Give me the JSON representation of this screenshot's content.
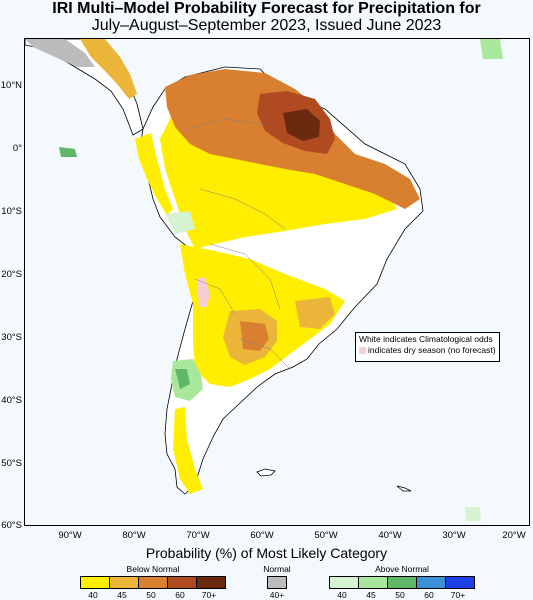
{
  "title_line1": "IRI Multi–Model Probability Forecast for Precipitation for",
  "title_line2": "July–August–September 2023, Issued June 2023",
  "map": {
    "lat_labels": [
      "10°N",
      "0°",
      "10°S",
      "20°S",
      "30°S",
      "40°S",
      "50°S",
      "60°S"
    ],
    "lon_labels": [
      "90°W",
      "80°W",
      "70°W",
      "60°W",
      "50°W",
      "40°W",
      "30°W",
      "20°W"
    ],
    "extent": {
      "lon_min": -98,
      "lon_max": -18,
      "lat_max": 18,
      "lat_min": -60
    },
    "land_color": "#ffffff",
    "ocean_color": "#f4f9fd"
  },
  "note": {
    "line1": "White indicates Climatological odds",
    "line2": "indicates dry season (no forecast)",
    "dry_color": "#f6cfd6"
  },
  "legend": {
    "title": "Probability (%) of Most Likely Category",
    "below": {
      "label": "Below Normal",
      "values": [
        "40",
        "45",
        "50",
        "60",
        "70+"
      ],
      "colors": [
        "#ffee00",
        "#ebb53a",
        "#d88030",
        "#b04a20",
        "#6b2a0f"
      ]
    },
    "normal": {
      "label": "Normal",
      "values": [
        "40+"
      ],
      "colors": [
        "#bcbcbc"
      ]
    },
    "above": {
      "label": "Above Normal",
      "values": [
        "40",
        "45",
        "50",
        "60",
        "70+"
      ],
      "colors": [
        "#d5f3d0",
        "#a9e89c",
        "#5fb86a",
        "#3a8fd6",
        "#1f3fe6"
      ]
    }
  },
  "regions": [
    {
      "name": "northern-amazon-below-normal",
      "category": "below",
      "level": "60"
    },
    {
      "name": "northern-south-america-below-normal",
      "category": "below",
      "level": "50"
    },
    {
      "name": "northeast-brazil-below-normal",
      "category": "below",
      "level": "50"
    },
    {
      "name": "central-america-below-normal",
      "category": "below",
      "level": "45"
    },
    {
      "name": "pacific-coast-below-normal",
      "category": "below",
      "level": "45"
    },
    {
      "name": "central-brazil-below-normal",
      "category": "below",
      "level": "40"
    },
    {
      "name": "la-plata-basin-below-normal",
      "category": "below",
      "level": "50"
    },
    {
      "name": "mexico-normal",
      "category": "normal",
      "level": "40+"
    },
    {
      "name": "central-chile-above-normal",
      "category": "above",
      "level": "50"
    },
    {
      "name": "altiplano-dry-season",
      "category": "dry"
    }
  ]
}
